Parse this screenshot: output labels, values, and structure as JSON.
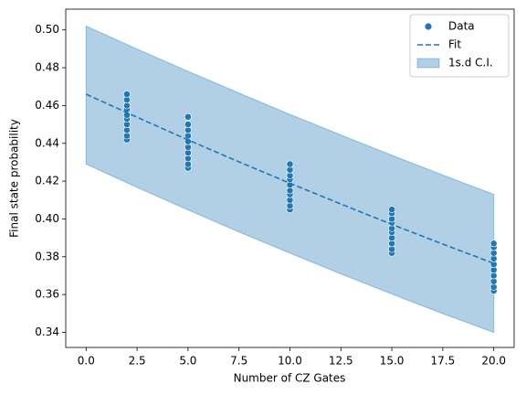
{
  "chart_data": {
    "type": "scatter-fit",
    "x_label": "Number of CZ Gates",
    "y_label": "Final state probability",
    "xlim": [
      -1,
      21
    ],
    "ylim": [
      0.332,
      0.511
    ],
    "xticks": [
      {
        "value": 0,
        "label": "0.0"
      },
      {
        "value": 2.5,
        "label": "2.5"
      },
      {
        "value": 5,
        "label": "5.0"
      },
      {
        "value": 7.5,
        "label": "7.5"
      },
      {
        "value": 10,
        "label": "10.0"
      },
      {
        "value": 12.5,
        "label": "12.5"
      },
      {
        "value": 15,
        "label": "15.0"
      },
      {
        "value": 17.5,
        "label": "17.5"
      },
      {
        "value": 20,
        "label": "20.0"
      }
    ],
    "yticks": [
      0.34,
      0.36,
      0.38,
      {
        "value": 0.4,
        "label": "0.40"
      },
      0.42,
      0.44,
      0.46,
      0.48,
      {
        "value": 0.5,
        "label": "0.50"
      }
    ],
    "legend": "upper right",
    "series": [
      {
        "name": "Data",
        "kind": "scatter",
        "color": "#1f77b4",
        "x": [
          2,
          2,
          2,
          2,
          2,
          2,
          2,
          2,
          2,
          2,
          5,
          5,
          5,
          5,
          5,
          5,
          5,
          5,
          5,
          5,
          10,
          10,
          10,
          10,
          10,
          10,
          10,
          10,
          10,
          10,
          15,
          15,
          15,
          15,
          15,
          15,
          15,
          15,
          15,
          15,
          20,
          20,
          20,
          20,
          20,
          20,
          20,
          20,
          20,
          20
        ],
        "values": [
          0.442,
          0.444,
          0.447,
          0.45,
          0.453,
          0.455,
          0.458,
          0.46,
          0.463,
          0.466,
          0.427,
          0.429,
          0.432,
          0.435,
          0.438,
          0.441,
          0.444,
          0.447,
          0.45,
          0.454,
          0.405,
          0.407,
          0.41,
          0.413,
          0.415,
          0.418,
          0.421,
          0.423,
          0.426,
          0.429,
          0.382,
          0.384,
          0.387,
          0.39,
          0.393,
          0.395,
          0.398,
          0.4,
          0.403,
          0.405,
          0.362,
          0.364,
          0.367,
          0.37,
          0.373,
          0.376,
          0.379,
          0.382,
          0.385,
          0.387
        ]
      },
      {
        "name": "Fit",
        "kind": "dashed-line",
        "color": "#1f77b4",
        "x": [
          0,
          2.5,
          5,
          7.5,
          10,
          12.5,
          15,
          17.5,
          20
        ],
        "values": [
          0.466,
          0.4538,
          0.4418,
          0.4302,
          0.4189,
          0.4079,
          0.3971,
          0.3867,
          0.3765
        ]
      },
      {
        "name": "1s.d C.I.",
        "kind": "band",
        "color": "#1f77b4",
        "x": [
          0,
          2.5,
          5,
          7.5,
          10,
          12.5,
          15,
          17.5,
          20
        ],
        "upper": [
          0.502,
          0.4899,
          0.4781,
          0.4666,
          0.4553,
          0.4444,
          0.4337,
          0.4232,
          0.413
        ],
        "lower": [
          0.429,
          0.4167,
          0.4048,
          0.3931,
          0.3819,
          0.3709,
          0.3603,
          0.3499,
          0.34
        ]
      }
    ]
  }
}
